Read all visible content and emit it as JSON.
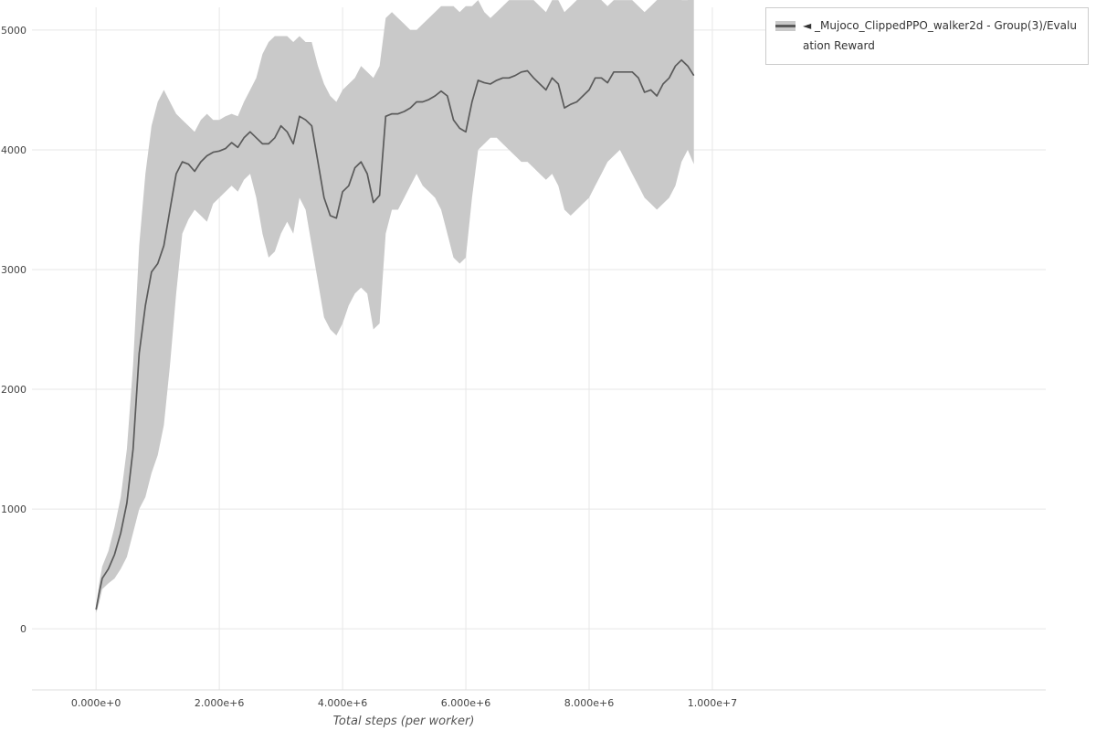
{
  "legend": {
    "label": "◄ _Mujoco_ClippedPPO_walker2d - Group(3)/Evaluation Reward",
    "position": "top_right"
  },
  "colors": {
    "band": "#c9c9c9",
    "line": "#5a5a5a",
    "grid": "#e7e7e7",
    "axis": "#dcdcdc",
    "tick_text": "#444444",
    "background": "#ffffff"
  },
  "chart_data": {
    "type": "line",
    "title": "",
    "xlabel": "Total steps (per worker)",
    "ylabel": "",
    "grid": true,
    "legend_position": "top_right",
    "xlim": [
      -1040000,
      15410000
    ],
    "ylim": [
      -510,
      5190
    ],
    "xticks": [
      {
        "value": 0,
        "label": "0.000e+0"
      },
      {
        "value": 2000000,
        "label": "2.000e+6"
      },
      {
        "value": 4000000,
        "label": "4.000e+6"
      },
      {
        "value": 6000000,
        "label": "6.000e+6"
      },
      {
        "value": 8000000,
        "label": "8.000e+6"
      },
      {
        "value": 10000000,
        "label": "1.000e+7"
      }
    ],
    "yticks": [
      0,
      1000,
      2000,
      3000,
      4000,
      5000
    ],
    "series": [
      {
        "name": "_Mujoco_ClippedPPO_walker2d - Group(3)/Evaluation Reward",
        "x_unit": 1000000,
        "line_color": "#5a5a5a",
        "band_color": "#c9c9c9",
        "x": [
          0,
          0.05,
          0.1,
          0.2,
          0.3,
          0.4,
          0.5,
          0.6,
          0.7,
          0.8,
          0.9,
          1,
          1.1,
          1.2,
          1.3,
          1.4,
          1.5,
          1.6,
          1.7,
          1.8,
          1.9,
          2,
          2.1,
          2.2,
          2.3,
          2.4,
          2.5,
          2.6,
          2.7,
          2.8,
          2.9,
          3,
          3.1,
          3.2,
          3.3,
          3.4,
          3.5,
          3.6,
          3.7,
          3.8,
          3.9,
          4,
          4.1,
          4.2,
          4.3,
          4.4,
          4.5,
          4.6,
          4.7,
          4.8,
          4.9,
          5,
          5.1,
          5.2,
          5.3,
          5.4,
          5.5,
          5.6,
          5.7,
          5.8,
          5.9,
          6,
          6.1,
          6.2,
          6.3,
          6.4,
          6.5,
          6.6,
          6.7,
          6.8,
          6.9,
          7,
          7.1,
          7.2,
          7.3,
          7.4,
          7.5,
          7.6,
          7.7,
          7.8,
          7.9,
          8,
          8.1,
          8.2,
          8.3,
          8.4,
          8.5,
          8.6,
          8.7,
          8.8,
          8.9,
          9,
          9.1,
          9.2,
          9.3,
          9.4,
          9.5,
          9.6,
          9.7
        ],
        "mean": [
          160,
          300,
          420,
          500,
          620,
          800,
          1050,
          1500,
          2300,
          2700,
          2980,
          3050,
          3200,
          3500,
          3800,
          3900,
          3880,
          3820,
          3900,
          3950,
          3980,
          3990,
          4010,
          4060,
          4020,
          4100,
          4150,
          4100,
          4050,
          4050,
          4100,
          4200,
          4150,
          4050,
          4280,
          4250,
          4200,
          3900,
          3600,
          3450,
          3430,
          3650,
          3700,
          3850,
          3900,
          3800,
          3560,
          3620,
          4280,
          4300,
          4300,
          4320,
          4350,
          4400,
          4400,
          4420,
          4450,
          4490,
          4450,
          4250,
          4180,
          4150,
          4400,
          4580,
          4560,
          4550,
          4580,
          4600,
          4600,
          4620,
          4650,
          4660,
          4600,
          4550,
          4500,
          4600,
          4550,
          4350,
          4380,
          4400,
          4450,
          4500,
          4600,
          4600,
          4560,
          4650,
          4650,
          4650,
          4650,
          4600,
          4480,
          4500,
          4450,
          4550,
          4600,
          4700,
          4750,
          4700,
          4620
        ],
        "lower": [
          130,
          220,
          330,
          380,
          420,
          500,
          600,
          800,
          1000,
          1100,
          1300,
          1450,
          1700,
          2200,
          2800,
          3300,
          3420,
          3500,
          3450,
          3400,
          3550,
          3600,
          3650,
          3700,
          3650,
          3750,
          3800,
          3600,
          3300,
          3100,
          3150,
          3300,
          3400,
          3300,
          3600,
          3500,
          3200,
          2900,
          2600,
          2500,
          2450,
          2550,
          2700,
          2800,
          2850,
          2800,
          2500,
          2550,
          3300,
          3500,
          3500,
          3600,
          3700,
          3800,
          3700,
          3650,
          3600,
          3500,
          3300,
          3100,
          3050,
          3100,
          3600,
          4000,
          4050,
          4100,
          4100,
          4050,
          4000,
          3950,
          3900,
          3900,
          3850,
          3800,
          3750,
          3800,
          3700,
          3500,
          3450,
          3500,
          3550,
          3600,
          3700,
          3800,
          3900,
          3950,
          4000,
          3900,
          3800,
          3700,
          3600,
          3550,
          3500,
          3550,
          3600,
          3700,
          3900,
          4000,
          3880
        ],
        "upper": [
          190,
          380,
          520,
          650,
          850,
          1100,
          1500,
          2200,
          3200,
          3800,
          4200,
          4400,
          4500,
          4400,
          4300,
          4250,
          4200,
          4150,
          4250,
          4300,
          4250,
          4250,
          4280,
          4300,
          4280,
          4400,
          4500,
          4600,
          4800,
          4900,
          4950,
          4950,
          4950,
          4900,
          4950,
          4900,
          4900,
          4700,
          4550,
          4450,
          4400,
          4500,
          4550,
          4600,
          4700,
          4650,
          4600,
          4700,
          5100,
          5150,
          5100,
          5050,
          5000,
          5000,
          5050,
          5100,
          5150,
          5200,
          5200,
          5200,
          5150,
          5200,
          5200,
          5250,
          5150,
          5100,
          5150,
          5200,
          5250,
          5250,
          5250,
          5250,
          5250,
          5200,
          5150,
          5250,
          5250,
          5150,
          5200,
          5250,
          5300,
          5300,
          5300,
          5250,
          5200,
          5250,
          5250,
          5250,
          5250,
          5200,
          5150,
          5200,
          5250,
          5350,
          5350,
          5300,
          5250,
          5250,
          5300
        ]
      }
    ]
  }
}
